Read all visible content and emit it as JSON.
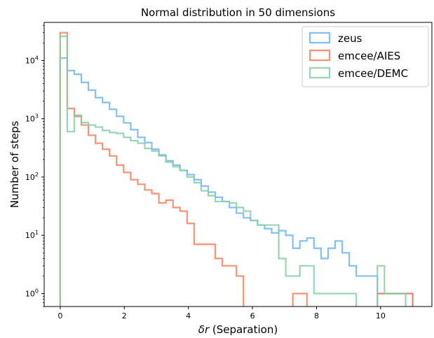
{
  "chart_data": {
    "type": "histogram-step",
    "title": "Normal distribution in 50 dimensions",
    "xlabel_italic": "δr",
    "xlabel_rest": " (Separation)",
    "ylabel": "Number of steps",
    "xlim": [
      -0.5,
      11.6
    ],
    "ylim": [
      0.6,
      45000
    ],
    "yscale": "log",
    "bin_width": 0.22,
    "x_ticks": [
      0,
      2,
      4,
      6,
      8,
      10
    ],
    "y_ticks": [
      1,
      10,
      100,
      1000,
      10000
    ],
    "y_tick_labels": [
      {
        "base": "10",
        "exp": "0"
      },
      {
        "base": "10",
        "exp": "1"
      },
      {
        "base": "10",
        "exp": "2"
      },
      {
        "base": "10",
        "exp": "3"
      },
      {
        "base": "10",
        "exp": "4"
      }
    ],
    "legend_position": "top-right",
    "series": [
      {
        "name": "zeus",
        "color": "#6bb5f5",
        "x_start": 0.0,
        "values": [
          11000,
          6700,
          5800,
          4200,
          3100,
          2300,
          1900,
          1450,
          1100,
          850,
          650,
          480,
          390,
          300,
          240,
          190,
          160,
          130,
          110,
          90,
          70,
          55,
          45,
          38,
          30,
          24,
          20,
          18,
          15,
          13,
          11,
          12,
          10,
          6,
          8,
          9,
          6,
          4,
          6,
          8,
          5,
          3,
          2,
          2,
          2,
          1,
          1,
          1,
          1,
          1
        ]
      },
      {
        "name": "emcee/AIES",
        "color": "#f87f5b",
        "x_start": 0.0,
        "values": [
          30000,
          1500,
          1100,
          780,
          520,
          380,
          300,
          230,
          160,
          120,
          90,
          75,
          60,
          52,
          36,
          40,
          30,
          26,
          16,
          7,
          7,
          7,
          4,
          3,
          3,
          2,
          0,
          0,
          0,
          0,
          0,
          0,
          0,
          1,
          1,
          0,
          0,
          0,
          0,
          0,
          0,
          0,
          0,
          0,
          0,
          1,
          1,
          1,
          1,
          1
        ]
      },
      {
        "name": "emcee/DEMC",
        "color": "#85cfa6",
        "x_start": 0.0,
        "values": [
          26000,
          600,
          1150,
          860,
          780,
          720,
          630,
          580,
          560,
          480,
          420,
          380,
          310,
          280,
          230,
          180,
          150,
          130,
          100,
          80,
          58,
          48,
          38,
          38,
          36,
          30,
          26,
          18,
          15,
          15,
          15,
          4,
          2,
          2,
          3,
          3,
          1,
          1,
          1,
          1,
          1,
          1,
          0,
          0,
          0,
          3,
          1,
          1,
          1,
          0
        ]
      }
    ]
  }
}
